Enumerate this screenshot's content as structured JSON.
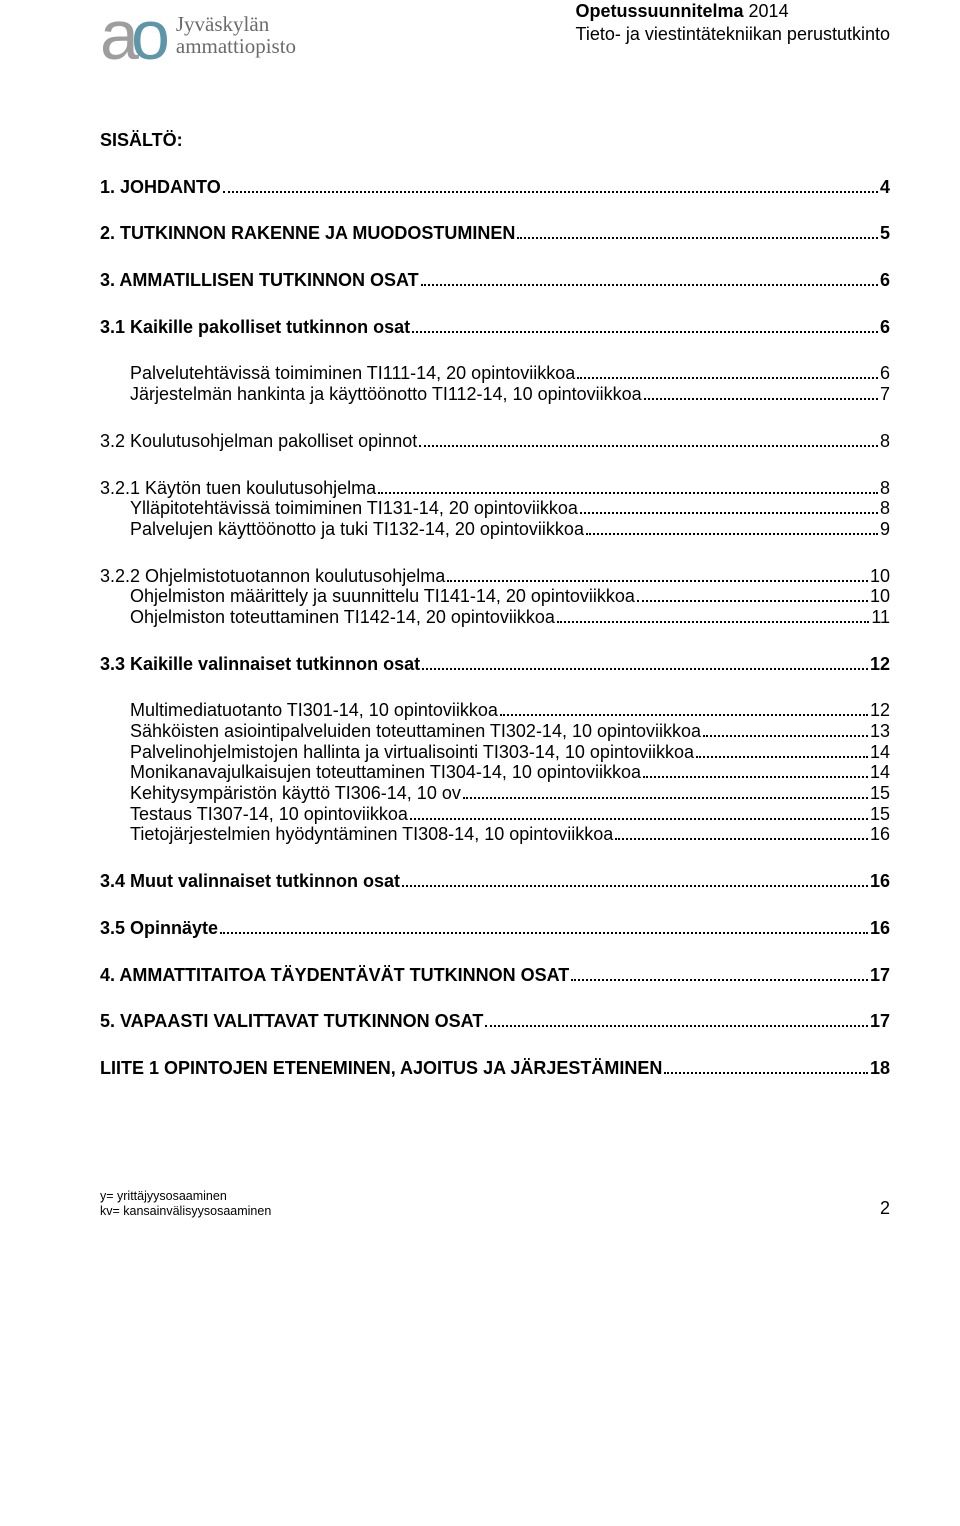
{
  "logo": {
    "a": "a",
    "o": "o",
    "line1": "Jyväskylän",
    "line2": "ammattiopisto"
  },
  "header": {
    "line1_bold": "Opetussuunnitelma",
    "line1_rest": " 2014",
    "line2": "Tieto- ja viestintätekniikan perustutkinto"
  },
  "sisalto": "SISÄLTÖ:",
  "toc": [
    {
      "cls": "lvl1 bold",
      "label": "1. JOHDANTO",
      "page": "4"
    },
    {
      "cls": "lvl1 bold",
      "label": "2. TUTKINNON RAKENNE JA MUODOSTUMINEN",
      "page": "5"
    },
    {
      "cls": "lvl1 bold",
      "label": "3. AMMATILLISEN TUTKINNON OSAT",
      "page": "6"
    },
    {
      "cls": "lvl2 bold",
      "label": "3.1 Kaikille pakolliset tutkinnon osat",
      "page": "6"
    },
    {
      "cls": "lvl3 group",
      "label": "Palvelutehtävissä toimiminen TI111-14, 20 opintoviikkoa",
      "page": "6"
    },
    {
      "cls": "lvl3",
      "label": "Järjestelmän hankinta ja käyttöönotto TI112-14, 10 opintoviikkoa",
      "page": "7"
    },
    {
      "cls": "lvl2",
      "label": "3.2 Koulutusohjelman pakolliset opinnot",
      "page": "8"
    },
    {
      "cls": "lvl2",
      "label": "3.2.1 Käytön tuen koulutusohjelma",
      "page": "8"
    },
    {
      "cls": "lvl3",
      "label": "Ylläpitotehtävissä toimiminen TI131-14, 20 opintoviikkoa",
      "page": "8"
    },
    {
      "cls": "lvl3",
      "label": "Palvelujen käyttöönotto ja tuki TI132-14, 20 opintoviikkoa",
      "page": "9"
    },
    {
      "cls": "lvl2",
      "label": "3.2.2 Ohjelmistotuotannon koulutusohjelma",
      "page": "10"
    },
    {
      "cls": "lvl3",
      "label": "Ohjelmiston määrittely ja suunnittelu TI141-14, 20 opintoviikkoa",
      "page": "10"
    },
    {
      "cls": "lvl3",
      "label": "Ohjelmiston toteuttaminen TI142-14, 20 opintoviikkoa",
      "page": "11"
    },
    {
      "cls": "lvl2 bold",
      "label": "3.3 Kaikille valinnaiset tutkinnon osat",
      "page": "12"
    },
    {
      "cls": "lvl3 group",
      "label": "Multimediatuotanto TI301-14, 10 opintoviikkoa",
      "page": "12"
    },
    {
      "cls": "lvl3",
      "label": "Sähköisten asiointipalveluiden toteuttaminen TI302-14, 10 opintoviikkoa",
      "page": "13"
    },
    {
      "cls": "lvl3",
      "label": "Palvelinohjelmistojen hallinta ja virtualisointi TI303-14, 10 opintoviikkoa",
      "page": "14"
    },
    {
      "cls": "lvl3",
      "label": "Monikanavajulkaisujen toteuttaminen TI304-14, 10 opintoviikkoa",
      "page": "14"
    },
    {
      "cls": "lvl3",
      "label": "Kehitysympäristön käyttö TI306-14, 10 ov",
      "page": "15"
    },
    {
      "cls": "lvl3",
      "label": "Testaus TI307-14, 10 opintoviikkoa",
      "page": "15"
    },
    {
      "cls": "lvl3",
      "label": "Tietojärjestelmien hyödyntäminen TI308-14, 10 opintoviikkoa",
      "page": "16"
    },
    {
      "cls": "lvl2 bold",
      "label": "3.4 Muut valinnaiset tutkinnon osat",
      "page": "16"
    },
    {
      "cls": "lvl2 bold",
      "label": "3.5 Opinnäyte",
      "page": "16"
    },
    {
      "cls": "lvl1 bold",
      "label": "4. AMMATTITAITOA TÄYDENTÄVÄT TUTKINNON OSAT",
      "page": "17"
    },
    {
      "cls": "lvl1 bold",
      "label": "5. VAPAASTI VALITTAVAT TUTKINNON OSAT",
      "page": "17"
    },
    {
      "cls": "lvl1 bold",
      "label": "LIITE 1 OPINTOJEN ETENEMINEN, AJOITUS JA JÄRJESTÄMINEN",
      "page": "18"
    }
  ],
  "footer": {
    "line1": "y= yrittäjyysosaaminen",
    "line2": "kv= kansainvälisyysosaaminen",
    "page": "2"
  }
}
